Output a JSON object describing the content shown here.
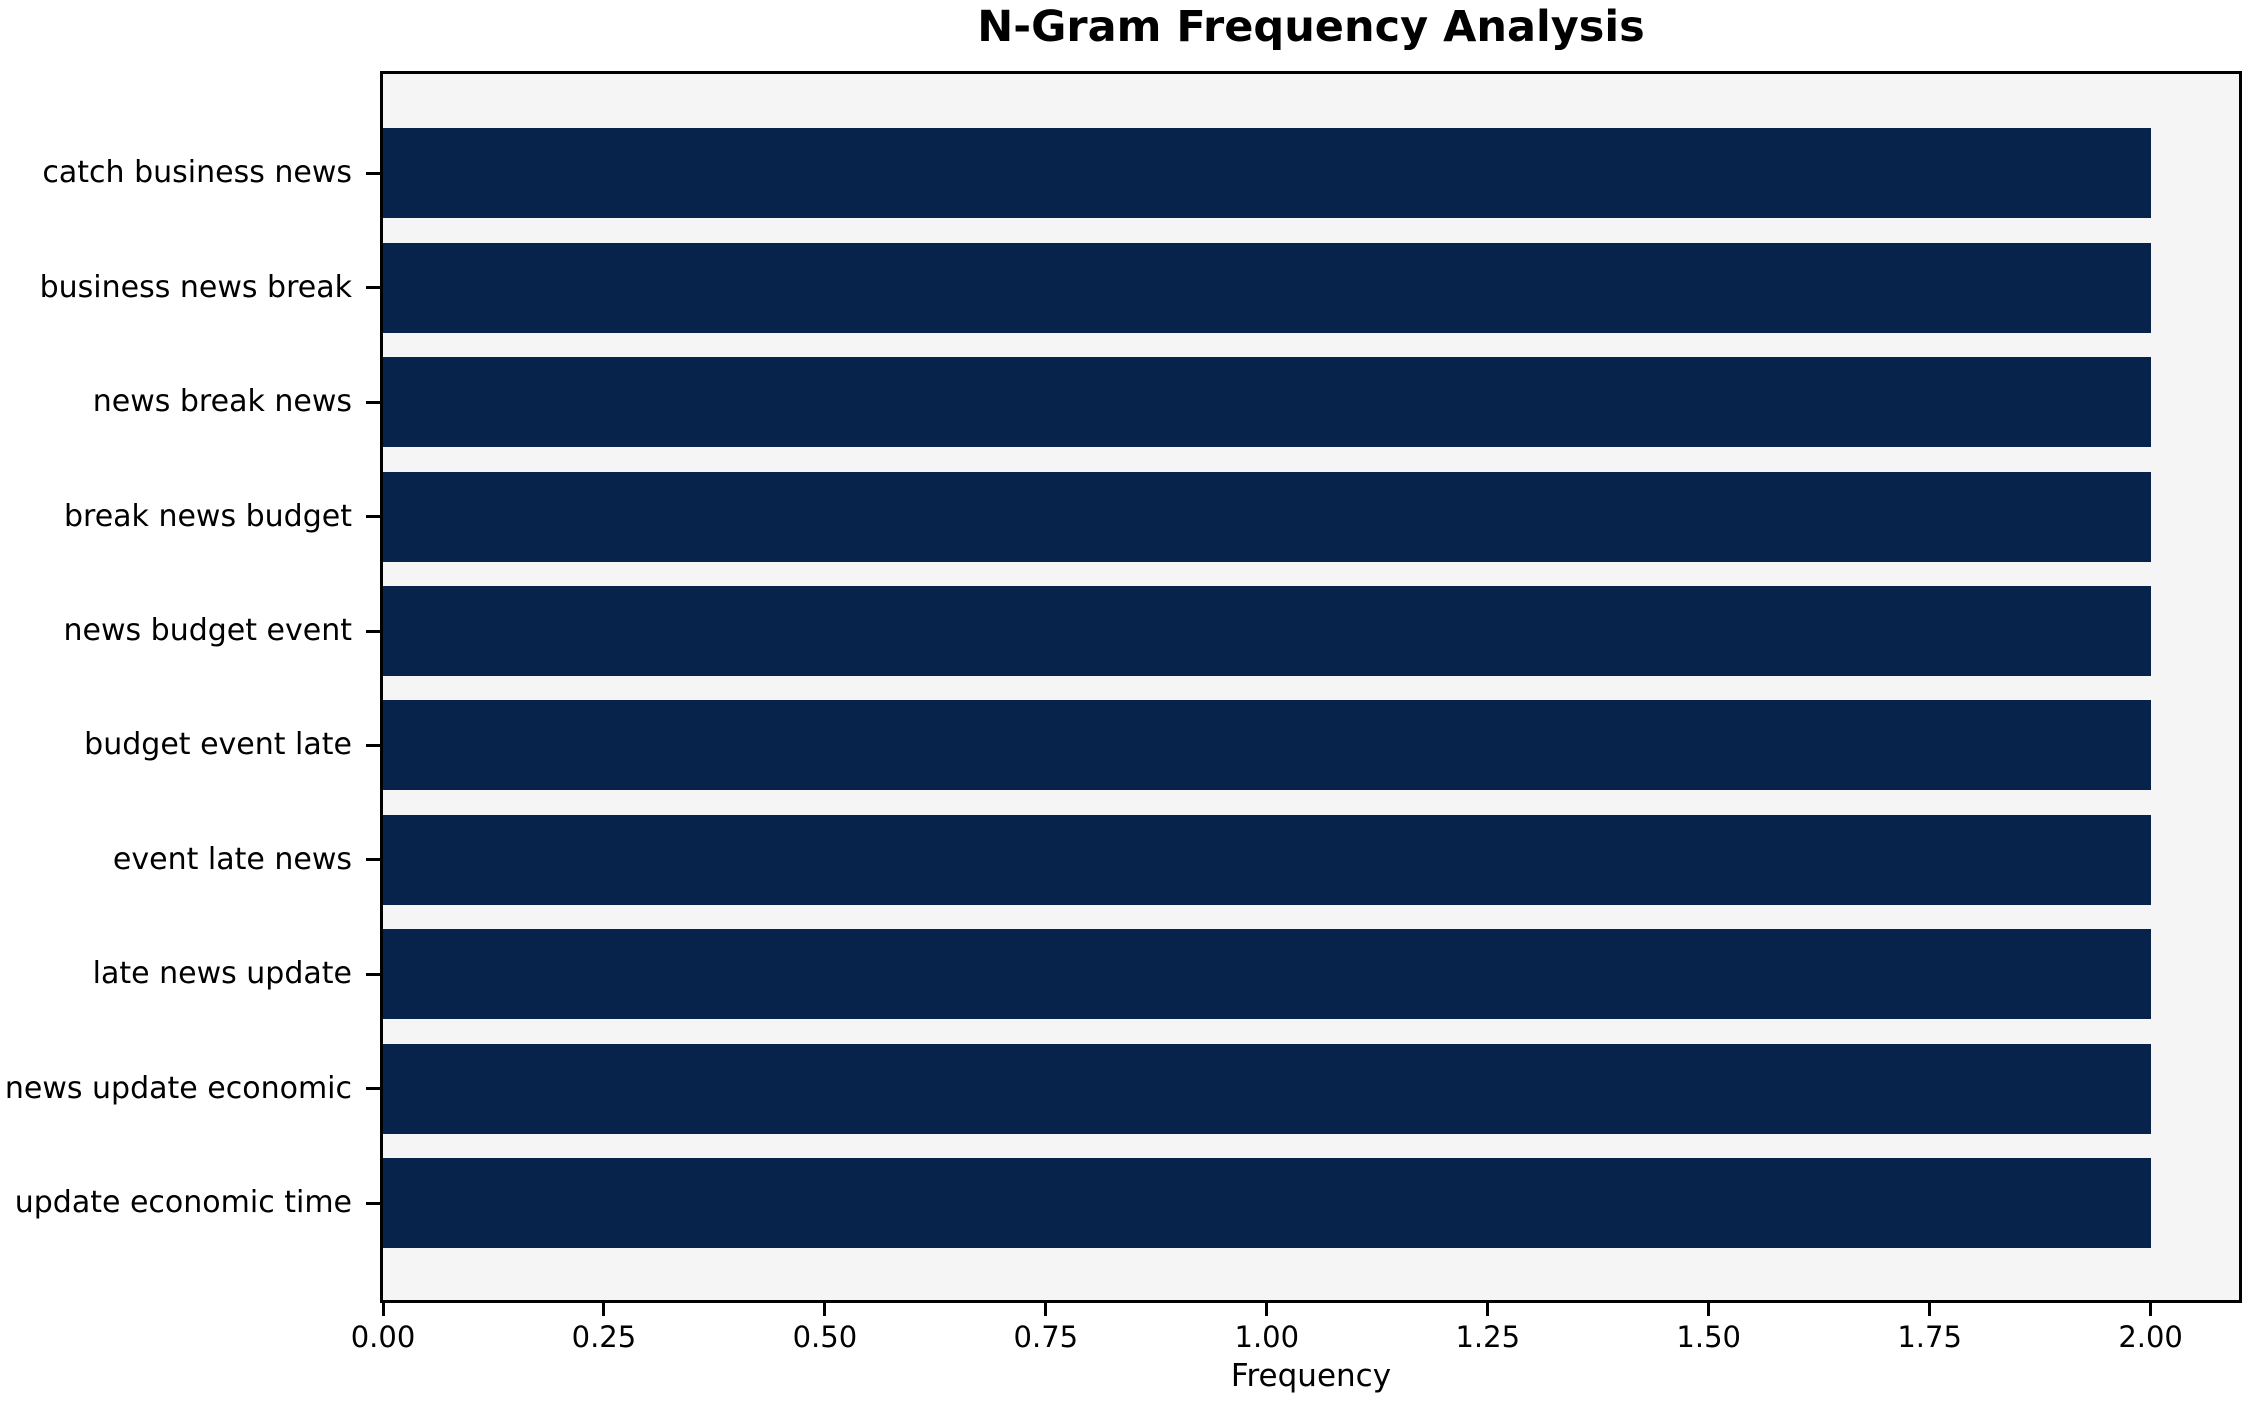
{
  "chart_data": {
    "type": "bar",
    "orientation": "horizontal",
    "title": "N-Gram Frequency Analysis",
    "xlabel": "Frequency",
    "ylabel": "",
    "categories": [
      "catch business news",
      "business news break",
      "news break news",
      "break news budget",
      "news budget event",
      "budget event late",
      "event late news",
      "late news update",
      "news update economic",
      "update economic time"
    ],
    "values": [
      2,
      2,
      2,
      2,
      2,
      2,
      2,
      2,
      2,
      2
    ],
    "xlim": [
      0,
      2.1
    ],
    "xtick_values": [
      0,
      0.25,
      0.5,
      0.75,
      1.0,
      1.25,
      1.5,
      1.75,
      2.0
    ],
    "xtick_labels": [
      "0.00",
      "0.25",
      "0.50",
      "0.75",
      "1.00",
      "1.25",
      "1.50",
      "1.75",
      "2.00"
    ],
    "grid": false,
    "legend": null,
    "colors": {
      "bar": "#07234b",
      "plot_background": "#f5f5f5",
      "figure_background": "#ffffff",
      "axis": "#000000",
      "text": "#000000"
    }
  }
}
